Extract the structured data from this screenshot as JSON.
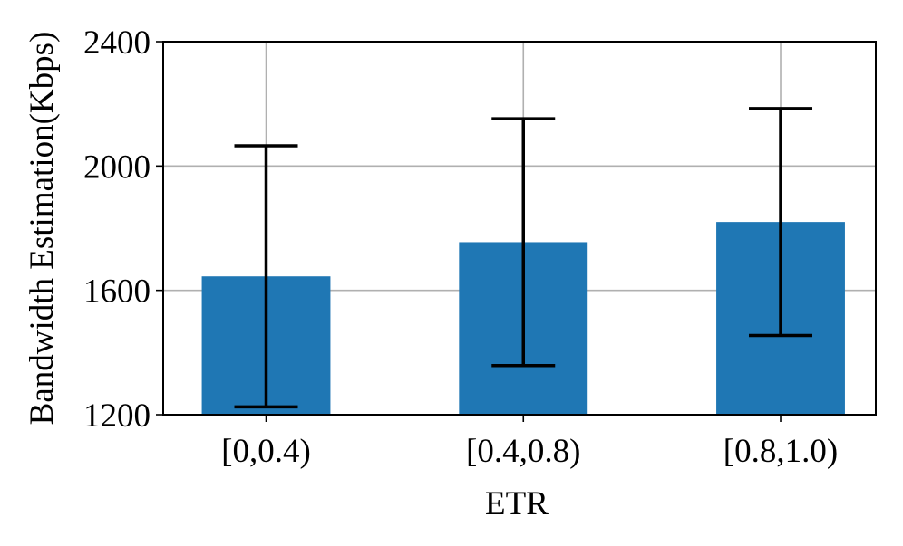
{
  "chart_data": {
    "type": "bar",
    "x_label": "ETR",
    "y_label": "Bandwidth Estimation(Kbps)",
    "categories": [
      "[0,0.4)",
      "[0.4,0.8)",
      "[0.8,1.0)"
    ],
    "values": [
      1645,
      1755,
      1820
    ],
    "errors": [
      420,
      397,
      365
    ],
    "color": "#1f77b4",
    "ylim": [
      1200,
      2400
    ],
    "yticks": [
      1200,
      1600,
      2000,
      2400
    ],
    "grid": true
  }
}
